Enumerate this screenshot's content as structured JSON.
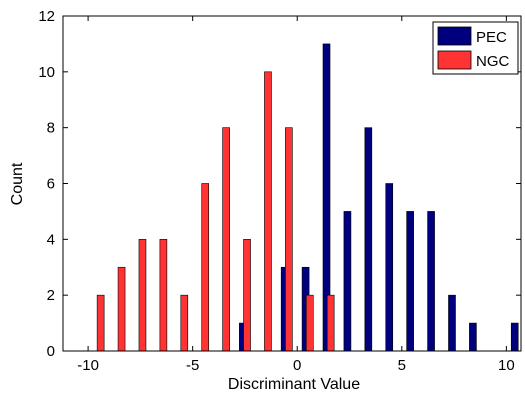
{
  "chart_data": {
    "type": "bar",
    "xlabel": "Discriminant Value",
    "ylabel": "Count",
    "xlim": [
      -11.2,
      10.7
    ],
    "ylim": [
      0,
      12
    ],
    "xticks": [
      -10,
      -5,
      0,
      5,
      10
    ],
    "yticks": [
      0,
      2,
      4,
      6,
      8,
      10,
      12
    ],
    "xtick_labels": [
      "-10",
      "-5",
      "0",
      "5",
      "10"
    ],
    "ytick_labels": [
      "0",
      "2",
      "4",
      "6",
      "8",
      "10",
      "12"
    ],
    "grid": false,
    "legend_position": "top-right",
    "series": [
      {
        "name": "PEC",
        "color": "#00007f",
        "x": [
          -2.6,
          -0.6,
          0.4,
          1.4,
          2.4,
          3.4,
          4.4,
          5.4,
          6.4,
          7.4,
          8.4,
          10.4
        ],
        "values": [
          1,
          3,
          3,
          11,
          5,
          8,
          6,
          5,
          5,
          2,
          1,
          1
        ]
      },
      {
        "name": "NGC",
        "color": "#ff3333",
        "x": [
          -9.4,
          -8.4,
          -7.4,
          -6.4,
          -5.4,
          -4.4,
          -3.4,
          -2.4,
          -1.4,
          -0.4,
          0.6,
          1.6
        ],
        "values": [
          2,
          3,
          4,
          4,
          2,
          6,
          8,
          4,
          10,
          8,
          2,
          2
        ]
      }
    ]
  }
}
